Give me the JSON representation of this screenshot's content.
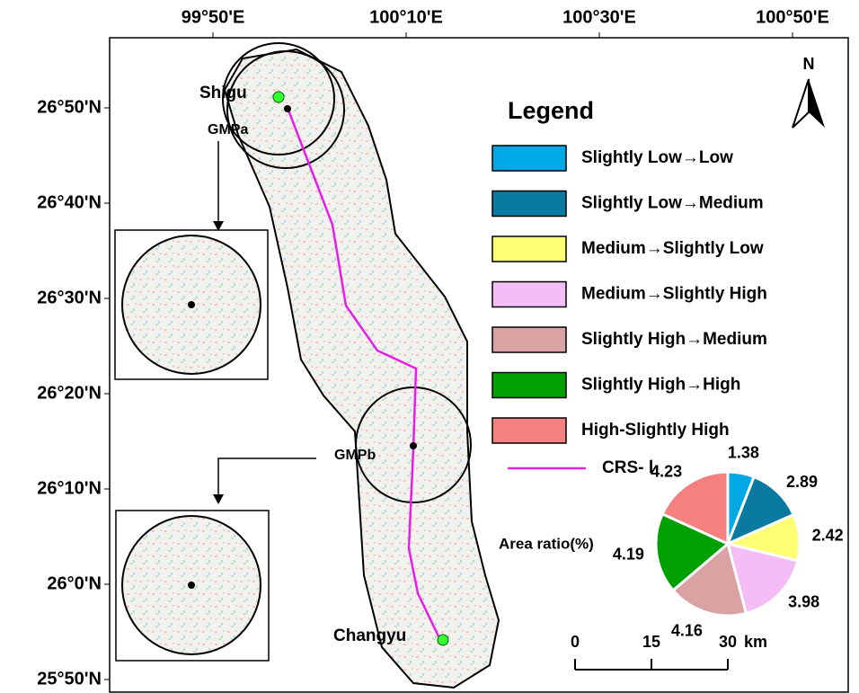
{
  "map": {
    "x_labels": [
      "99°50'E",
      "100°10'E",
      "100°30'E",
      "100°50'E"
    ],
    "y_labels": [
      "26°50'N",
      "26°40'N",
      "26°30'N",
      "26°20'N",
      "26°10'N",
      "26°0'N",
      "25°50'N"
    ],
    "places": {
      "start": "Shigu",
      "end": "Changyu",
      "zone_a": "GMPa",
      "zone_b": "GMPb"
    },
    "north": "N"
  },
  "legend": {
    "title": "Legend",
    "line_label": "CRS- Ⅰ",
    "line_color": "#e61ee6"
  },
  "scale_bar": {
    "ticks": [
      0,
      15,
      30
    ],
    "unit": "km"
  },
  "chart_data": {
    "type": "pie",
    "title": "Area ratio(%)",
    "categories": [
      "Slightly Low→Low",
      "Slightly Low→Medium",
      "Medium→Slightly Low",
      "Medium→Slightly High",
      "Slightly High→Medium",
      "Slightly High→High",
      "High-Slightly High"
    ],
    "colors": [
      "#00a8e6",
      "#0a7aa0",
      "#ffff73",
      "#f5bdf5",
      "#d9a3a3",
      "#00a000",
      "#f48080"
    ],
    "values": [
      1.38,
      2.89,
      2.42,
      3.98,
      4.16,
      4.19,
      4.23
    ]
  }
}
